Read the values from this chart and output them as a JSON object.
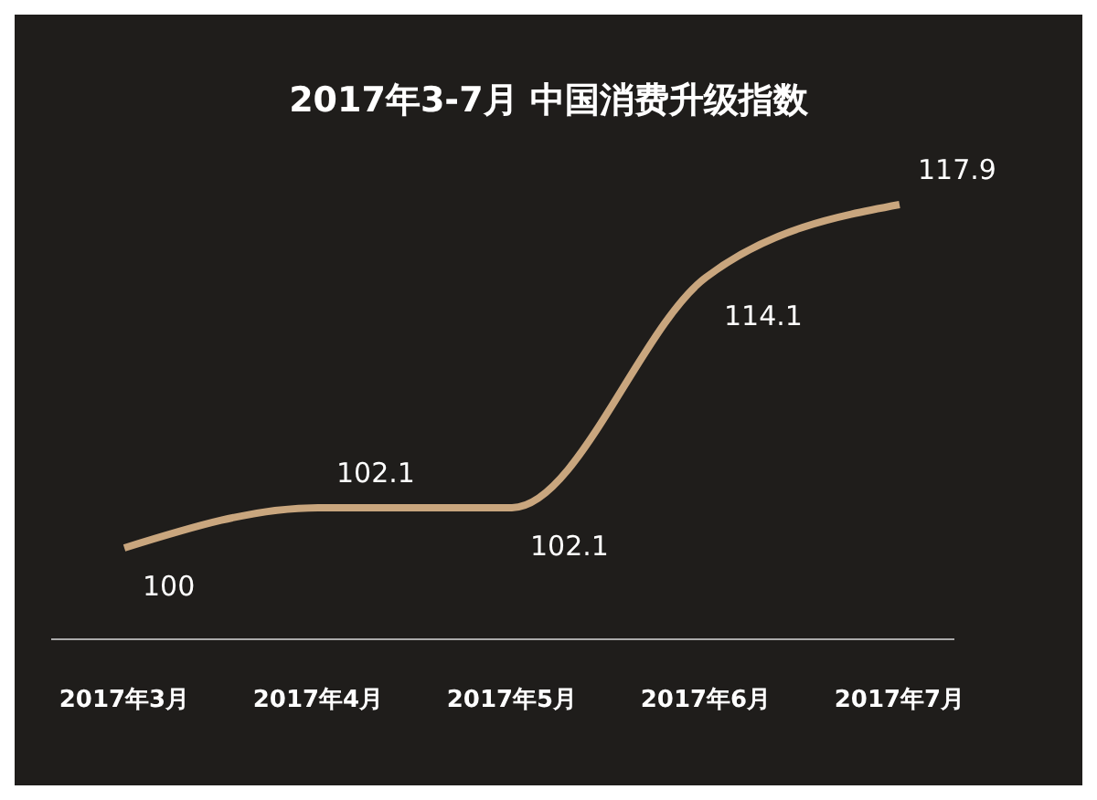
{
  "chart_data": {
    "type": "line",
    "title": "2017年3-7月 中国消费升级指数",
    "categories": [
      "2017年3月",
      "2017年4月",
      "2017年5月",
      "2017年6月",
      "2017年7月"
    ],
    "series": [
      {
        "color": "#c9a67e",
        "values": [
          100,
          102.1,
          102.1,
          114.1,
          117.9
        ]
      }
    ],
    "data_labels": true,
    "grid": false,
    "legend": false,
    "marker": "none",
    "line_style": "solid"
  }
}
